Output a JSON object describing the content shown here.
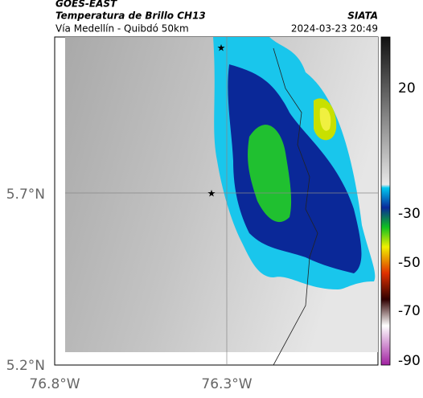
{
  "header": {
    "title": "GOES-EAST",
    "subtitle": "Temperatura de Brillo CH13",
    "source": "SIATA",
    "route": "Vía Medellín - Quibdó 50km",
    "datetime": "2024-03-23 20:49"
  },
  "map": {
    "lat_labels": [
      "5.7°N",
      "5.2°N"
    ],
    "lon_labels": [
      "76.8°W",
      "76.3°W"
    ]
  },
  "colorbar": {
    "ticks": [
      "20",
      "-30",
      "-50",
      "-70",
      "-90"
    ]
  }
}
